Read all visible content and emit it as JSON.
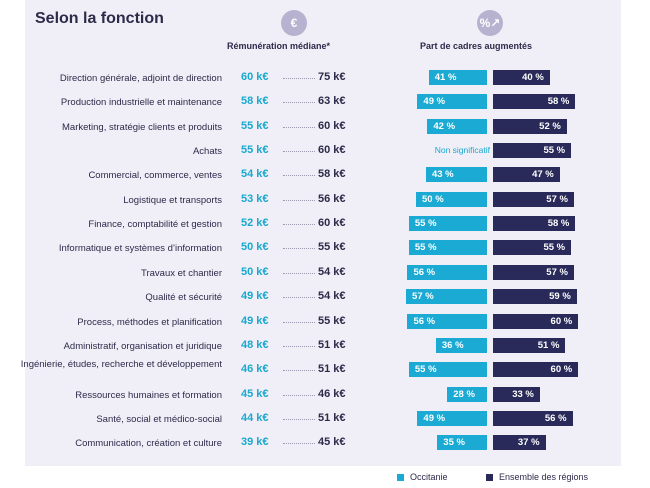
{
  "title": "Selon la fonction",
  "headers": {
    "salary": "Rémunération médiane*",
    "raised": "Part de cadres augmentés"
  },
  "icons": {
    "salary": "euro-icon",
    "raised": "percent-arrow-icon"
  },
  "legend": {
    "occitanie": "Occitanie",
    "regions": "Ensemble des régions"
  },
  "colors": {
    "occitanie": "#1aaad3",
    "regions": "#29295a",
    "text": "#2d2a4a"
  },
  "chart_data": {
    "type": "bar",
    "title": "Selon la fonction",
    "series": [
      {
        "name": "Occitanie",
        "values": [
          41,
          49,
          42,
          null,
          43,
          50,
          55,
          55,
          56,
          57,
          56,
          36,
          55,
          28,
          49,
          35
        ],
        "labels": [
          "41 %",
          "49 %",
          "42 %",
          "Non significatif",
          "43 %",
          "50 %",
          "55 %",
          "55 %",
          "56 %",
          "57 %",
          "56 %",
          "36 %",
          "55 %",
          "28 %",
          "49 %",
          "35 %"
        ]
      },
      {
        "name": "Ensemble des régions",
        "values": [
          40,
          58,
          52,
          55,
          47,
          57,
          58,
          55,
          57,
          59,
          60,
          51,
          60,
          33,
          56,
          37
        ],
        "labels": [
          "40 %",
          "58 %",
          "52 %",
          "55 %",
          "47 %",
          "57 %",
          "58 %",
          "55 %",
          "57 %",
          "59 %",
          "60 %",
          "51 %",
          "60 %",
          "33 %",
          "56 %",
          "37 %"
        ]
      }
    ],
    "rows": [
      {
        "function": "Direction générale, adjoint de direction",
        "salary_occitanie": "60 k€",
        "salary_regions": "75 k€"
      },
      {
        "function": "Production industrielle et maintenance",
        "salary_occitanie": "58 k€",
        "salary_regions": "63 k€"
      },
      {
        "function": "Marketing, stratégie clients et produits",
        "salary_occitanie": "55 k€",
        "salary_regions": "60 k€"
      },
      {
        "function": "Achats",
        "salary_occitanie": "55 k€",
        "salary_regions": "60 k€"
      },
      {
        "function": "Commercial, commerce, ventes",
        "salary_occitanie": "54 k€",
        "salary_regions": "58 k€"
      },
      {
        "function": "Logistique et transports",
        "salary_occitanie": "53 k€",
        "salary_regions": "56 k€"
      },
      {
        "function": "Finance, comptabilité et gestion",
        "salary_occitanie": "52 k€",
        "salary_regions": "60 k€"
      },
      {
        "function": "Informatique et systèmes d’information",
        "salary_occitanie": "50 k€",
        "salary_regions": "55 k€"
      },
      {
        "function": "Travaux et chantier",
        "salary_occitanie": "50 k€",
        "salary_regions": "54 k€"
      },
      {
        "function": "Qualité et sécurité",
        "salary_occitanie": "49 k€",
        "salary_regions": "54 k€"
      },
      {
        "function": "Process, méthodes et planification",
        "salary_occitanie": "49 k€",
        "salary_regions": "55 k€"
      },
      {
        "function": "Administratif, organisation et juridique",
        "salary_occitanie": "48 k€",
        "salary_regions": "51 k€"
      },
      {
        "function": "Ingénierie, études, recherche et développement",
        "salary_occitanie": "46 k€",
        "salary_regions": "51 k€"
      },
      {
        "function": "Ressources humaines et formation",
        "salary_occitanie": "45 k€",
        "salary_regions": "46 k€"
      },
      {
        "function": "Santé, social et médico-social",
        "salary_occitanie": "44 k€",
        "salary_regions": "51 k€"
      },
      {
        "function": "Communication, création et culture",
        "salary_occitanie": "39 k€",
        "salary_regions": "45 k€"
      }
    ]
  }
}
